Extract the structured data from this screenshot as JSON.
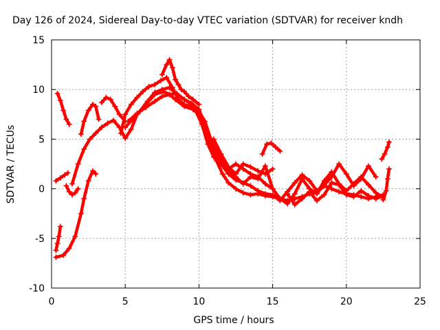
{
  "chart_data": {
    "type": "scatter",
    "title": "Day 126 of 2024, Sidereal Day-to-day VTEC variation (SDTVAR) for receiver kndh",
    "xlabel": "GPS time / hours",
    "ylabel": "SDTVAR / TECUs",
    "xlim": [
      0,
      25
    ],
    "ylim": [
      -10,
      15
    ],
    "xticks": [
      0,
      5,
      10,
      15,
      20,
      25
    ],
    "yticks": [
      -10,
      -5,
      0,
      5,
      10,
      15
    ],
    "xtick_labels": [
      "0",
      "5",
      "10",
      "15",
      "20",
      "25"
    ],
    "ytick_labels": [
      "-10",
      "-5",
      "0",
      "5",
      "10",
      "15"
    ],
    "grid": true,
    "marker": "+",
    "color": "#ff0000",
    "series": [
      {
        "name": "trace-1",
        "x": [
          0.4,
          0.6,
          0.8,
          1.0,
          1.2
        ],
        "y": [
          9.6,
          8.9,
          7.9,
          7.0,
          6.5
        ]
      },
      {
        "name": "trace-2",
        "x": [
          0.3,
          0.6,
          0.9,
          1.1
        ],
        "y": [
          0.8,
          1.1,
          1.4,
          1.6
        ]
      },
      {
        "name": "trace-3",
        "x": [
          0.3,
          0.4,
          0.5,
          0.6
        ],
        "y": [
          -6.2,
          -5.5,
          -4.8,
          -3.8
        ]
      },
      {
        "name": "trace-4",
        "x": [
          1.0,
          1.2,
          1.4,
          1.6,
          1.8
        ],
        "y": [
          0.3,
          -0.3,
          -0.6,
          -0.4,
          0.0
        ]
      },
      {
        "name": "trace-5",
        "x": [
          0.3,
          0.8,
          1.2,
          1.6,
          2.0,
          2.2,
          2.5,
          2.8,
          3.0
        ],
        "y": [
          -6.9,
          -6.7,
          -6.0,
          -4.8,
          -2.5,
          -1.0,
          0.8,
          1.8,
          1.5
        ]
      },
      {
        "name": "trace-6",
        "x": [
          1.4,
          1.8,
          2.2,
          2.6,
          3.0,
          3.4,
          3.8,
          4.2,
          4.6,
          5.0,
          5.4,
          5.8,
          6.4,
          7.0,
          7.6,
          8.0,
          8.4,
          9.0,
          9.6,
          10.0,
          10.4,
          10.8,
          11.2,
          11.6,
          12.0,
          12.5,
          13.0,
          13.5,
          14.0,
          14.5,
          15.0,
          15.5,
          16.0,
          16.5,
          17.0,
          17.5,
          18.0,
          18.5,
          19.0,
          19.5,
          20.0,
          20.5,
          21.0,
          21.5,
          22.0,
          22.5
        ],
        "y": [
          0.5,
          2.5,
          4.0,
          5.0,
          5.6,
          6.2,
          6.6,
          6.9,
          6.2,
          5.1,
          6.0,
          7.5,
          8.5,
          9.5,
          9.8,
          9.5,
          9.0,
          8.3,
          8.0,
          7.5,
          6.0,
          4.2,
          2.8,
          1.5,
          0.6,
          0.0,
          -0.4,
          -0.6,
          -0.5,
          -0.7,
          -0.8,
          -1.0,
          -1.2,
          -1.0,
          -0.8,
          -0.5,
          -0.4,
          0.3,
          0.0,
          -0.3,
          -0.5,
          -0.6,
          -0.8,
          -1.0,
          -0.8,
          -0.6
        ]
      },
      {
        "name": "trace-7",
        "x": [
          2.0,
          2.2,
          2.5,
          2.8,
          3.0,
          3.2
        ],
        "y": [
          5.5,
          6.8,
          7.9,
          8.5,
          8.3,
          7.0
        ]
      },
      {
        "name": "trace-8",
        "x": [
          3.4,
          3.7,
          4.0,
          4.3,
          4.6,
          5.0
        ],
        "y": [
          8.7,
          9.2,
          9.0,
          8.3,
          7.5,
          6.8
        ]
      },
      {
        "name": "trace-9",
        "x": [
          4.7,
          5.0,
          5.4,
          5.8,
          6.2,
          6.6,
          7.0,
          7.4,
          7.8,
          8.2,
          8.6,
          9.0,
          9.4,
          9.8,
          10.2,
          10.6,
          11.0,
          11.5,
          12.0,
          12.5,
          13.0,
          13.5,
          14.0,
          14.5,
          15.0
        ],
        "y": [
          5.6,
          7.5,
          8.5,
          9.2,
          9.8,
          10.3,
          10.5,
          10.9,
          11.2,
          10.2,
          9.0,
          8.5,
          8.3,
          7.8,
          6.5,
          4.5,
          3.2,
          2.5,
          2.0,
          2.5,
          2.0,
          1.5,
          1.2,
          0.5,
          0.0
        ]
      },
      {
        "name": "trace-10",
        "x": [
          5.0,
          5.5,
          6.0,
          6.5,
          7.0,
          7.5,
          8.0,
          8.5,
          9.0,
          9.5,
          10.0,
          10.5,
          11.0,
          11.5,
          12.0,
          12.5,
          13.0,
          13.5,
          14.0,
          14.5,
          15.0,
          15.5,
          16.0,
          16.5,
          17.0,
          17.5,
          18.0,
          18.5,
          19.0,
          19.5,
          20.0,
          20.5,
          21.0,
          21.5,
          22.0,
          22.5
        ],
        "y": [
          6.2,
          7.0,
          7.8,
          8.8,
          9.7,
          10.0,
          10.2,
          9.5,
          9.0,
          8.6,
          8.0,
          6.0,
          4.5,
          3.0,
          1.8,
          1.2,
          0.5,
          1.2,
          1.0,
          2.3,
          0.0,
          -1.0,
          -1.5,
          -0.5,
          1.0,
          0.0,
          -0.5,
          0.8,
          1.7,
          0.5,
          -0.2,
          0.5,
          1.2,
          0.4,
          -0.4,
          -0.9
        ]
      },
      {
        "name": "trace-11",
        "x": [
          5.2,
          5.8,
          6.4,
          7.0,
          7.5,
          8.0,
          8.5,
          9.0,
          9.5,
          10.0,
          10.4,
          10.8,
          11.2,
          11.6,
          12.0,
          12.5,
          13.0,
          13.5,
          14.0,
          14.5,
          15.0,
          15.5,
          16.0,
          16.5,
          17.0,
          17.5,
          18.0,
          18.5,
          19.0,
          19.5,
          20.0,
          20.5,
          21.0,
          21.5,
          22.0
        ],
        "y": [
          6.8,
          7.6,
          8.2,
          8.8,
          9.3,
          9.5,
          9.6,
          9.0,
          8.5,
          7.8,
          6.8,
          5.0,
          3.5,
          2.3,
          1.5,
          0.9,
          0.6,
          0.3,
          -0.2,
          -0.5,
          -0.6,
          -1.2,
          -0.3,
          0.6,
          1.4,
          0.8,
          -0.2,
          0.4,
          1.2,
          2.5,
          1.5,
          0.3,
          1.0,
          2.3,
          1.2
        ]
      },
      {
        "name": "trace-12",
        "x": [
          7.5,
          7.8,
          8.0,
          8.2,
          8.4,
          8.6,
          8.8,
          9.0,
          9.3,
          9.6,
          10.0
        ],
        "y": [
          11.5,
          12.5,
          13.0,
          12.2,
          11.0,
          10.5,
          10.0,
          9.8,
          9.3,
          9.0,
          8.5
        ]
      },
      {
        "name": "trace-13",
        "x": [
          11.0,
          11.5,
          12.0,
          12.5,
          13.0,
          13.5,
          14.0,
          14.5,
          15.0
        ],
        "y": [
          5.0,
          3.5,
          2.2,
          1.5,
          2.5,
          2.2,
          1.8,
          1.5,
          2.0
        ]
      },
      {
        "name": "trace-14",
        "x": [
          14.3,
          14.6,
          14.9,
          15.2,
          15.5
        ],
        "y": [
          3.5,
          4.5,
          4.6,
          4.2,
          3.8
        ]
      },
      {
        "name": "trace-15",
        "x": [
          16.0,
          16.5,
          17.0,
          17.5,
          18.0,
          18.5,
          19.0,
          19.5,
          20.0,
          20.5,
          21.0,
          21.5,
          22.0,
          22.5
        ],
        "y": [
          -0.5,
          -1.6,
          -1.0,
          -0.3,
          -1.2,
          -0.6,
          0.6,
          0.4,
          -0.6,
          -0.8,
          -0.2,
          -0.7,
          -1.0,
          -0.7
        ]
      },
      {
        "name": "trace-16",
        "x": [
          22.4,
          22.6,
          22.8,
          22.9
        ],
        "y": [
          3.0,
          3.5,
          4.2,
          4.7
        ]
      },
      {
        "name": "trace-17",
        "x": [
          22.5,
          22.7,
          22.8,
          22.9
        ],
        "y": [
          -1.1,
          -0.2,
          1.0,
          2.0
        ]
      }
    ]
  }
}
